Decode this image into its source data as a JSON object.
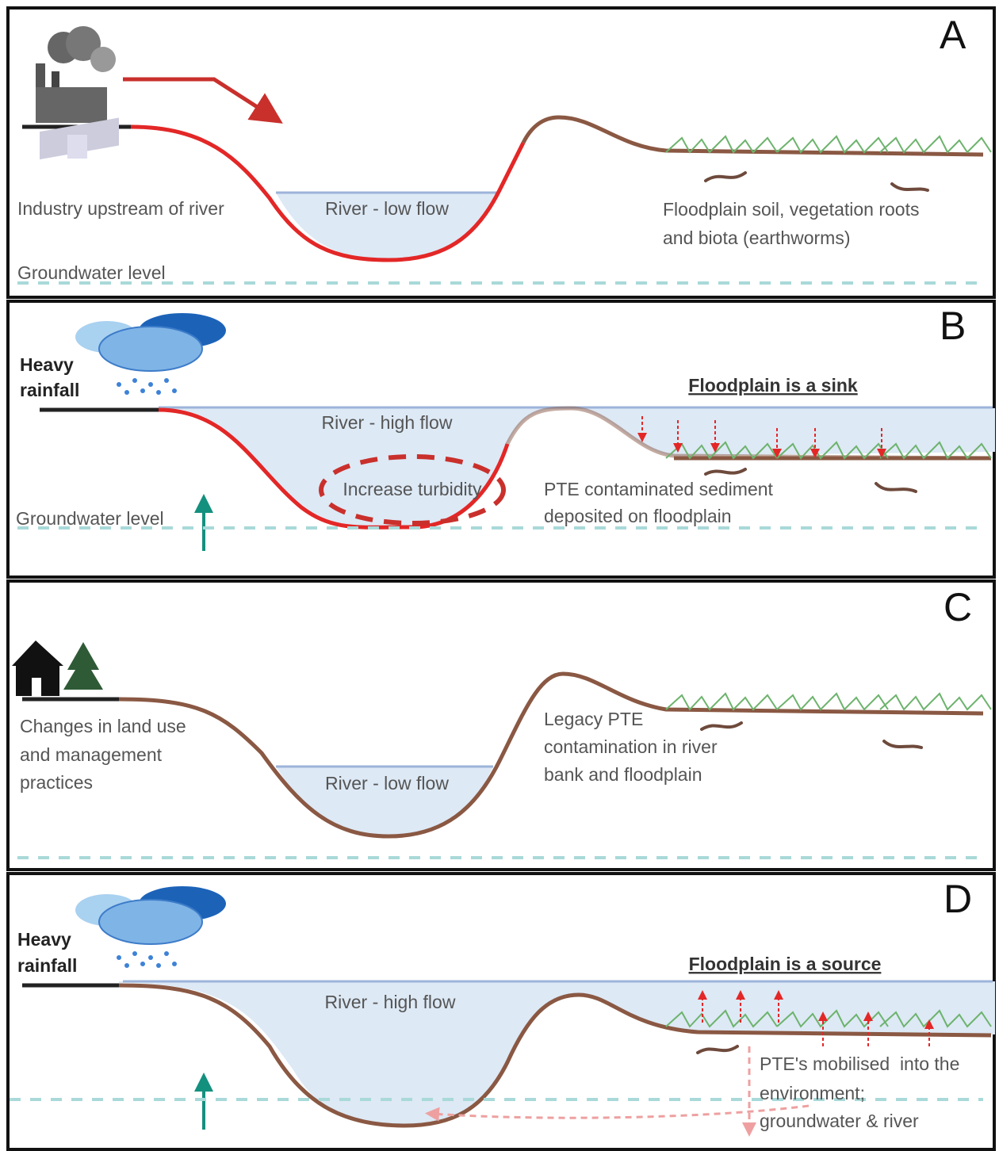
{
  "panels": [
    {
      "label": "A",
      "industry": "Industry upstream of river",
      "river": "River - low flow",
      "floodplain": [
        "Floodplain soil, vegetation roots",
        "and biota (earthworms)"
      ],
      "groundwater": "Groundwater level"
    },
    {
      "label": "B",
      "rainfall": [
        "Heavy",
        "rainfall"
      ],
      "heading": "Floodplain is a sink",
      "river": "River - high flow",
      "turbidity": "Increase turbidity",
      "deposit": [
        "PTE contaminated sediment",
        "deposited on floodplain"
      ],
      "groundwater": "Groundwater level"
    },
    {
      "label": "C",
      "land_use": [
        "Changes in land use",
        "and management",
        "practices"
      ],
      "river": "River - low flow",
      "legacy": [
        "Legacy PTE",
        "contamination in river",
        "bank and floodplain"
      ]
    },
    {
      "label": "D",
      "rainfall": [
        "Heavy",
        "rainfall"
      ],
      "heading": "Floodplain is a source",
      "river": "River - high flow",
      "mobilised": [
        "PTE's mobilised  into the",
        "environment;",
        "groundwater & river"
      ]
    }
  ]
}
